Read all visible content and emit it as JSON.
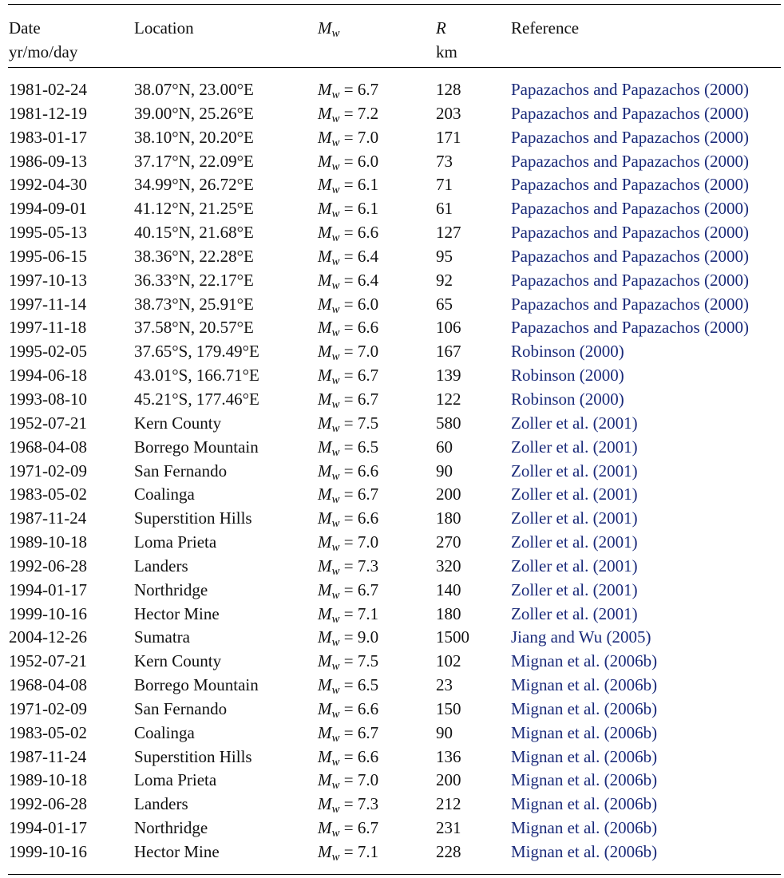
{
  "table": {
    "headers": {
      "date": "Date",
      "date_sub": "yr/mo/day",
      "location": "Location",
      "magnitude_symbol": "M",
      "magnitude_subscript": "w",
      "r_symbol": "R",
      "r_unit": "km",
      "reference": "Reference"
    },
    "rows": [
      {
        "date": "1981-02-24",
        "location": "38.07°N, 23.00°E",
        "mw": "6.7",
        "r": "128",
        "reference": "Papazachos and Papazachos (2000)"
      },
      {
        "date": "1981-12-19",
        "location": "39.00°N, 25.26°E",
        "mw": "7.2",
        "r": "203",
        "reference": "Papazachos and Papazachos (2000)"
      },
      {
        "date": "1983-01-17",
        "location": "38.10°N, 20.20°E",
        "mw": "7.0",
        "r": "171",
        "reference": "Papazachos and Papazachos (2000)"
      },
      {
        "date": "1986-09-13",
        "location": "37.17°N, 22.09°E",
        "mw": "6.0",
        "r": "73",
        "reference": "Papazachos and Papazachos (2000)"
      },
      {
        "date": "1992-04-30",
        "location": "34.99°N, 26.72°E",
        "mw": "6.1",
        "r": "71",
        "reference": "Papazachos and Papazachos (2000)"
      },
      {
        "date": "1994-09-01",
        "location": "41.12°N, 21.25°E",
        "mw": "6.1",
        "r": "61",
        "reference": "Papazachos and Papazachos (2000)"
      },
      {
        "date": "1995-05-13",
        "location": "40.15°N, 21.68°E",
        "mw": "6.6",
        "r": "127",
        "reference": "Papazachos and Papazachos (2000)"
      },
      {
        "date": "1995-06-15",
        "location": "38.36°N, 22.28°E",
        "mw": "6.4",
        "r": "95",
        "reference": "Papazachos and Papazachos (2000)"
      },
      {
        "date": "1997-10-13",
        "location": "36.33°N, 22.17°E",
        "mw": "6.4",
        "r": "92",
        "reference": "Papazachos and Papazachos (2000)"
      },
      {
        "date": "1997-11-14",
        "location": "38.73°N, 25.91°E",
        "mw": "6.0",
        "r": "65",
        "reference": "Papazachos and Papazachos (2000)"
      },
      {
        "date": "1997-11-18",
        "location": "37.58°N, 20.57°E",
        "mw": "6.6",
        "r": "106",
        "reference": "Papazachos and Papazachos (2000)"
      },
      {
        "date": "1995-02-05",
        "location": "37.65°S, 179.49°E",
        "mw": "7.0",
        "r": "167",
        "reference": "Robinson (2000)"
      },
      {
        "date": "1994-06-18",
        "location": "43.01°S, 166.71°E",
        "mw": "6.7",
        "r": "139",
        "reference": "Robinson (2000)"
      },
      {
        "date": "1993-08-10",
        "location": "45.21°S, 177.46°E",
        "mw": "6.7",
        "r": "122",
        "reference": "Robinson (2000)"
      },
      {
        "date": "1952-07-21",
        "location": "Kern County",
        "mw": "7.5",
        "r": "580",
        "reference": "Zoller et al. (2001)"
      },
      {
        "date": "1968-04-08",
        "location": "Borrego Mountain",
        "mw": "6.5",
        "r": "60",
        "reference": "Zoller et al. (2001)"
      },
      {
        "date": "1971-02-09",
        "location": "San Fernando",
        "mw": "6.6",
        "r": "90",
        "reference": "Zoller et al. (2001)"
      },
      {
        "date": "1983-05-02",
        "location": "Coalinga",
        "mw": "6.7",
        "r": "200",
        "reference": "Zoller et al. (2001)"
      },
      {
        "date": "1987-11-24",
        "location": "Superstition Hills",
        "mw": "6.6",
        "r": "180",
        "reference": "Zoller et al. (2001)"
      },
      {
        "date": "1989-10-18",
        "location": "Loma Prieta",
        "mw": "7.0",
        "r": "270",
        "reference": "Zoller et al. (2001)"
      },
      {
        "date": "1992-06-28",
        "location": "Landers",
        "mw": "7.3",
        "r": "320",
        "reference": "Zoller et al. (2001)"
      },
      {
        "date": "1994-01-17",
        "location": "Northridge",
        "mw": "6.7",
        "r": "140",
        "reference": "Zoller et al. (2001)"
      },
      {
        "date": "1999-10-16",
        "location": "Hector Mine",
        "mw": "7.1",
        "r": "180",
        "reference": "Zoller et al. (2001)"
      },
      {
        "date": "2004-12-26",
        "location": "Sumatra",
        "mw": "9.0",
        "r": "1500",
        "reference": "Jiang and Wu (2005)"
      },
      {
        "date": "1952-07-21",
        "location": "Kern County",
        "mw": "7.5",
        "r": "102",
        "reference": "Mignan et al. (2006b)"
      },
      {
        "date": "1968-04-08",
        "location": "Borrego Mountain",
        "mw": "6.5",
        "r": "23",
        "reference": "Mignan et al. (2006b)"
      },
      {
        "date": "1971-02-09",
        "location": "San Fernando",
        "mw": "6.6",
        "r": "150",
        "reference": "Mignan et al. (2006b)"
      },
      {
        "date": "1983-05-02",
        "location": "Coalinga",
        "mw": "6.7",
        "r": "90",
        "reference": "Mignan et al. (2006b)"
      },
      {
        "date": "1987-11-24",
        "location": "Superstition Hills",
        "mw": "6.6",
        "r": "136",
        "reference": "Mignan et al. (2006b)"
      },
      {
        "date": "1989-10-18",
        "location": "Loma Prieta",
        "mw": "7.0",
        "r": "200",
        "reference": "Mignan et al. (2006b)"
      },
      {
        "date": "1992-06-28",
        "location": "Landers",
        "mw": "7.3",
        "r": "212",
        "reference": "Mignan et al. (2006b)"
      },
      {
        "date": "1994-01-17",
        "location": "Northridge",
        "mw": "6.7",
        "r": "231",
        "reference": "Mignan et al. (2006b)"
      },
      {
        "date": "1999-10-16",
        "location": "Hector Mine",
        "mw": "7.1",
        "r": "228",
        "reference": "Mignan et al. (2006b)"
      }
    ]
  }
}
